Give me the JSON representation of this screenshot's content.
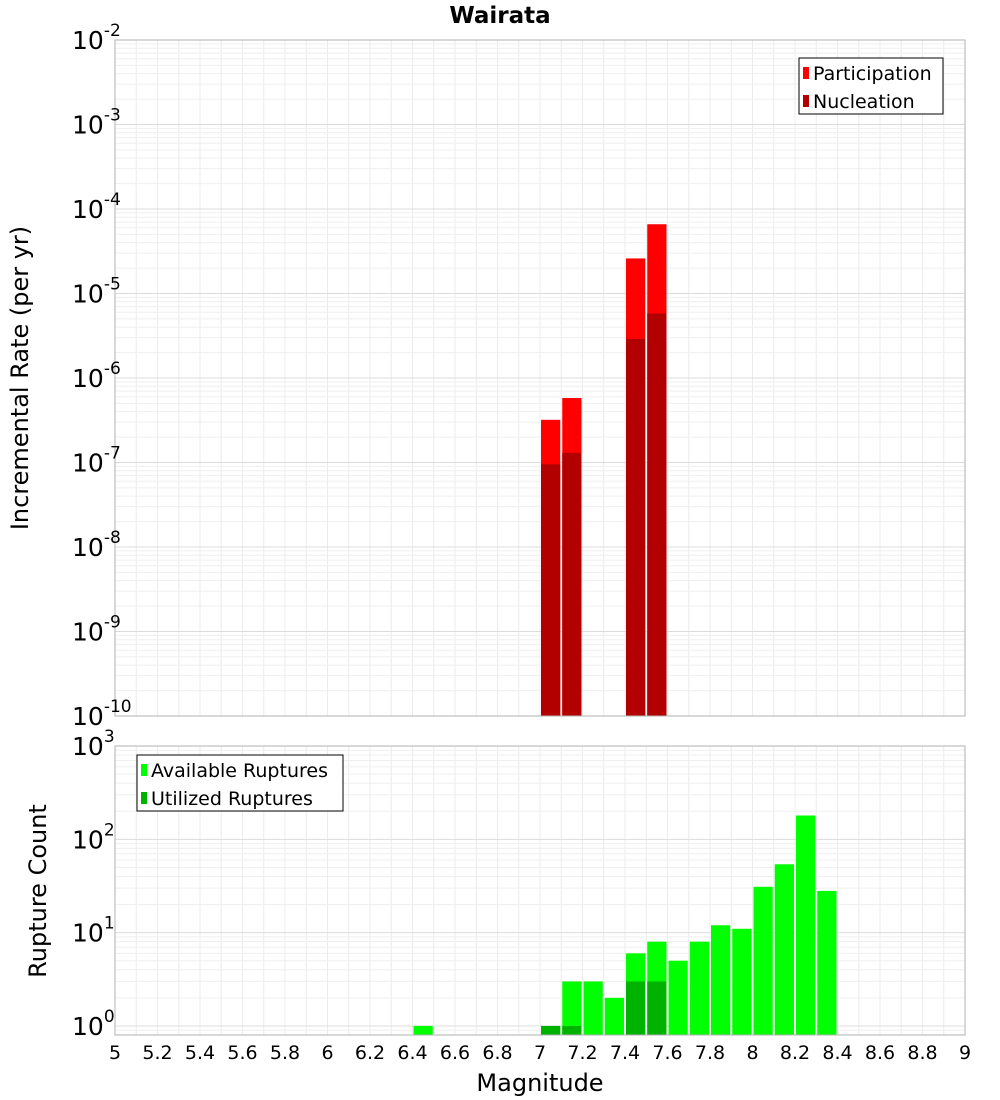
{
  "chart_data": [
    {
      "type": "bar",
      "title": "Wairata",
      "xlabel": "",
      "ylabel": "Incremental Rate (per yr)",
      "y_scale": "log",
      "ylim": [
        1e-10,
        0.01
      ],
      "y_ticks": [
        {
          "base": "10",
          "exp": "-10",
          "value": 1e-10
        },
        {
          "base": "10",
          "exp": "-9",
          "value": 1e-09
        },
        {
          "base": "10",
          "exp": "-8",
          "value": 1e-08
        },
        {
          "base": "10",
          "exp": "-7",
          "value": 1e-07
        },
        {
          "base": "10",
          "exp": "-6",
          "value": 1e-06
        },
        {
          "base": "10",
          "exp": "-5",
          "value": 1e-05
        },
        {
          "base": "10",
          "exp": "-4",
          "value": 0.0001
        },
        {
          "base": "10",
          "exp": "-3",
          "value": 0.001
        },
        {
          "base": "10",
          "exp": "-2",
          "value": 0.01
        }
      ],
      "xlim": [
        5,
        9
      ],
      "bin_width": 0.1,
      "grid": true,
      "legend_position": "top-right",
      "series": [
        {
          "name": "Participation",
          "color": "#ff0000",
          "x": [
            7.05,
            7.15,
            7.45,
            7.55
          ],
          "values": [
            3.2e-07,
            5.8e-07,
            2.6e-05,
            6.6e-05
          ]
        },
        {
          "name": "Nucleation",
          "color": "#b20000",
          "x": [
            7.05,
            7.15,
            7.45,
            7.55
          ],
          "values": [
            9.5e-08,
            1.3e-07,
            2.9e-06,
            5.8e-06
          ]
        }
      ]
    },
    {
      "type": "bar",
      "xlabel": "Magnitude",
      "ylabel": "Rupture Count",
      "y_scale": "log",
      "ylim": [
        0.8,
        1000
      ],
      "y_ticks": [
        {
          "base": "10",
          "exp": "0",
          "value": 1
        },
        {
          "base": "10",
          "exp": "1",
          "value": 10
        },
        {
          "base": "10",
          "exp": "2",
          "value": 100
        },
        {
          "base": "10",
          "exp": "3",
          "value": 1000
        }
      ],
      "xlim": [
        5,
        9
      ],
      "x_ticks": [
        "5",
        "5.2",
        "5.4",
        "5.6",
        "5.8",
        "6",
        "6.2",
        "6.4",
        "6.6",
        "6.8",
        "7",
        "7.2",
        "7.4",
        "7.6",
        "7.8",
        "8",
        "8.2",
        "8.4",
        "8.6",
        "8.8",
        "9"
      ],
      "bin_width": 0.1,
      "grid": true,
      "legend_position": "top-left",
      "series": [
        {
          "name": "Available Ruptures",
          "color": "#00ff00",
          "x": [
            6.45,
            7.05,
            7.15,
            7.25,
            7.35,
            7.45,
            7.55,
            7.65,
            7.75,
            7.85,
            7.95,
            8.05,
            8.15,
            8.25,
            8.35
          ],
          "values": [
            1,
            1,
            3,
            3,
            2,
            6,
            8,
            5,
            8,
            12,
            11,
            31,
            54,
            180,
            28
          ]
        },
        {
          "name": "Utilized Ruptures",
          "color": "#00b200",
          "x": [
            7.05,
            7.15,
            7.45,
            7.55
          ],
          "values": [
            1,
            1,
            3,
            3
          ]
        }
      ]
    }
  ]
}
